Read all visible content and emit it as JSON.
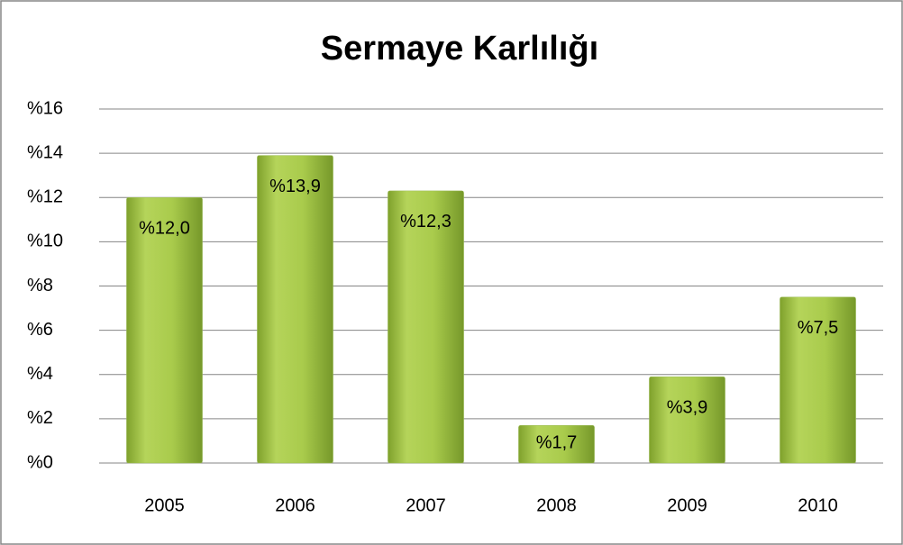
{
  "chart_data": {
    "type": "bar",
    "title": "Sermaye Karlılığı",
    "categories": [
      "2005",
      "2006",
      "2007",
      "2008",
      "2009",
      "2010"
    ],
    "values": [
      12.0,
      13.9,
      12.3,
      1.7,
      3.9,
      7.5
    ],
    "value_labels": [
      "%12,0",
      "%13,9",
      "%12,3",
      "%1,7",
      "%3,9",
      "%7,5"
    ],
    "color": "#9bbb59",
    "ylim": [
      0,
      16
    ],
    "yticks": [
      {
        "value": 0,
        "label": "%0"
      },
      {
        "value": 2,
        "label": "%2"
      },
      {
        "value": 4,
        "label": "%4"
      },
      {
        "value": 6,
        "label": "%6"
      },
      {
        "value": 8,
        "label": "%8"
      },
      {
        "value": 10,
        "label": "%10"
      },
      {
        "value": 12,
        "label": "%12"
      },
      {
        "value": 14,
        "label": "%14"
      },
      {
        "value": 16,
        "label": "%16"
      }
    ],
    "grid": true
  }
}
